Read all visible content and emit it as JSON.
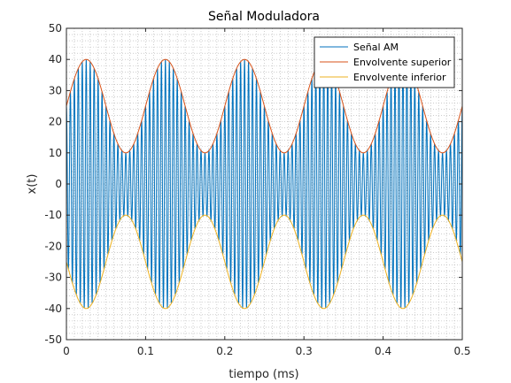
{
  "chart_data": {
    "type": "line",
    "title": "Señal Moduladora",
    "xlabel": "tiempo (ms)",
    "ylabel": "x(t)",
    "xlim": [
      0,
      0.5
    ],
    "ylim": [
      -50,
      50
    ],
    "xticks": [
      0,
      0.1,
      0.2,
      0.3,
      0.4,
      0.5
    ],
    "xtick_labels": [
      "0",
      "0.1",
      "0.2",
      "0.3",
      "0.4",
      "0.5"
    ],
    "yticks": [
      -50,
      -40,
      -30,
      -20,
      -10,
      0,
      10,
      20,
      30,
      40,
      50
    ],
    "ytick_labels": [
      "-50",
      "-40",
      "-30",
      "-20",
      "-10",
      "0",
      "10",
      "20",
      "30",
      "40",
      "50"
    ],
    "grid": "minor dotted",
    "legend_position": "top-right",
    "envelope": {
      "offset": 25,
      "amplitude": 15,
      "modulating_frequency_cycles_per_ms": 10
    },
    "carrier_frequency_cycles_per_ms": 200,
    "series": [
      {
        "name": "Señal AM",
        "color": "#0072BD",
        "kind": "am_signal"
      },
      {
        "name": "Envolvente superior",
        "color": "#D95319",
        "kind": "upper_envelope"
      },
      {
        "name": "Envolvente inferior",
        "color": "#EDB120",
        "kind": "lower_envelope"
      }
    ]
  }
}
